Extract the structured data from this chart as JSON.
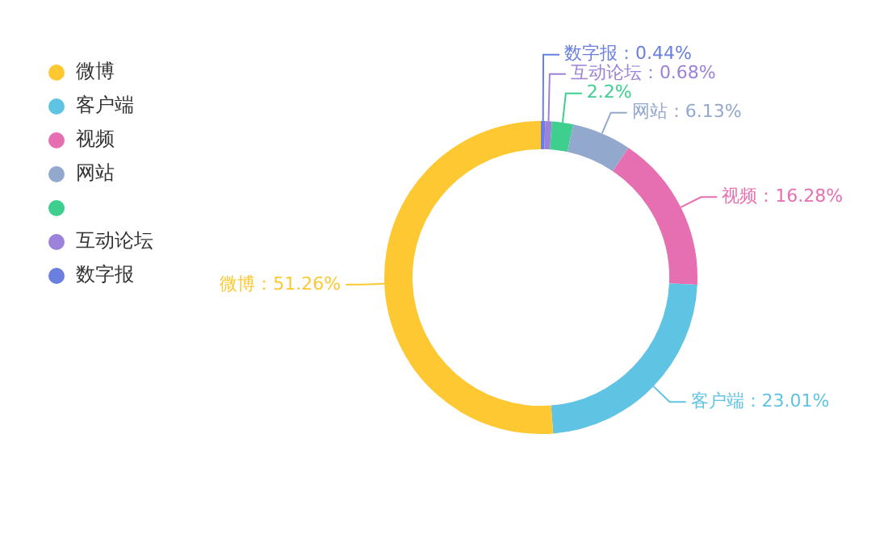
{
  "chart_data": {
    "type": "donut",
    "categories": [
      "微博",
      "客户端",
      "视频",
      "网站",
      null,
      "互动论坛",
      "数字报"
    ],
    "values": [
      51.26,
      23.01,
      16.28,
      6.13,
      2.2,
      0.68,
      0.44
    ],
    "value_labels": [
      "微博：51.26%",
      "客户端：23.01%",
      "视频：16.28%",
      "网站：6.13%",
      "2.2%",
      "互动论坛：0.68%",
      "数字报：0.44%"
    ],
    "colors": [
      "#fdc831",
      "#5fc3e4",
      "#e66fb2",
      "#93a8cd",
      "#3ecf8e",
      "#9c82db",
      "#6a7fe0"
    ],
    "legend": "top left"
  }
}
